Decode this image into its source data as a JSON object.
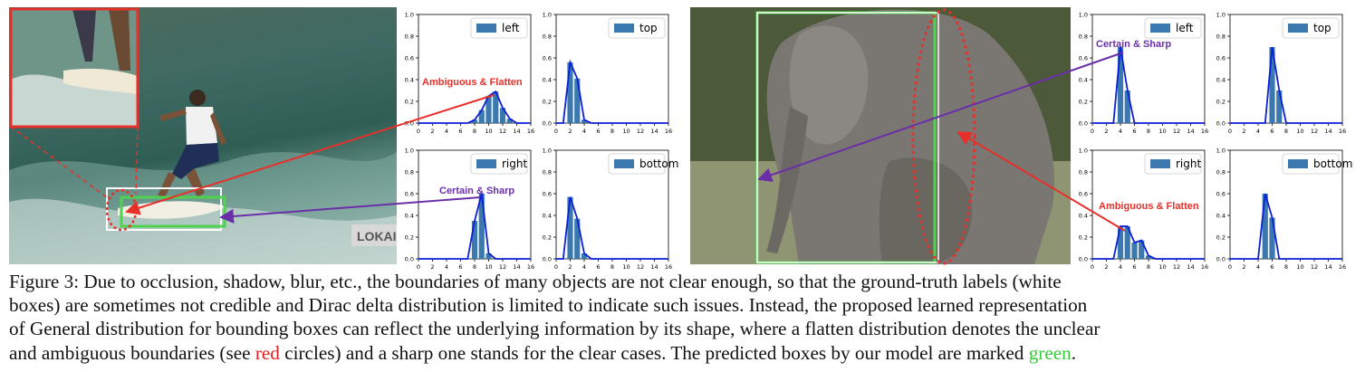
{
  "figure": {
    "left_panel": {
      "annotation_red": "Ambiguous & Flatten",
      "annotation_purple": "Certain & Sharp",
      "sign_text": "LOKAI",
      "ids": {
        "tl": "left-top-left",
        "tr": "left-top-right",
        "bl": "left-bottom-left",
        "br": "left-bottom-right"
      }
    },
    "right_panel": {
      "annotation_red": "Ambiguous & Flatten",
      "annotation_purple": "Certain & Sharp",
      "ids": {
        "tl": "right-top-left",
        "tr": "right-top-right",
        "bl": "right-bottom-left",
        "br": "right-bottom-right"
      }
    },
    "colors": {
      "bar": "#3b78b0",
      "curve": "#0a1fd6",
      "red": "#e8302a",
      "purple": "#6a2fa8",
      "green": "#4fd24f"
    }
  },
  "chart_data": [
    {
      "id": "left-top-left",
      "type": "bar",
      "legend": "left",
      "x": [
        0,
        1,
        2,
        3,
        4,
        5,
        6,
        7,
        8,
        9,
        10,
        11,
        12,
        13,
        14,
        15,
        16
      ],
      "values": [
        0,
        0,
        0,
        0,
        0,
        0,
        0,
        0,
        0.03,
        0.12,
        0.25,
        0.29,
        0.14,
        0.04,
        0,
        0,
        0
      ],
      "xlim": [
        0,
        16
      ],
      "ylim": [
        0,
        1.0
      ],
      "xticks": [
        0,
        2,
        4,
        6,
        8,
        10,
        12,
        14,
        16
      ],
      "yticks": [
        0.0,
        0.2,
        0.4,
        0.6,
        0.8,
        1.0
      ]
    },
    {
      "id": "left-top-right",
      "type": "bar",
      "legend": "top",
      "x": [
        0,
        1,
        2,
        3,
        4,
        5,
        6,
        7,
        8,
        9,
        10,
        11,
        12,
        13,
        14,
        15,
        16
      ],
      "values": [
        0,
        0,
        0.56,
        0.41,
        0.03,
        0,
        0,
        0,
        0,
        0,
        0,
        0,
        0,
        0,
        0,
        0,
        0
      ],
      "xlim": [
        0,
        16
      ],
      "ylim": [
        0,
        1.0
      ],
      "xticks": [
        0,
        2,
        4,
        6,
        8,
        10,
        12,
        14,
        16
      ],
      "yticks": [
        0.0,
        0.2,
        0.4,
        0.6,
        0.8,
        1.0
      ]
    },
    {
      "id": "left-bottom-left",
      "type": "bar",
      "legend": "right",
      "x": [
        0,
        1,
        2,
        3,
        4,
        5,
        6,
        7,
        8,
        9,
        10,
        11,
        12,
        13,
        14,
        15,
        16
      ],
      "values": [
        0,
        0,
        0,
        0,
        0,
        0,
        0,
        0,
        0.35,
        0.6,
        0.05,
        0,
        0,
        0,
        0,
        0,
        0
      ],
      "xlim": [
        0,
        16
      ],
      "ylim": [
        0,
        1.0
      ],
      "xticks": [
        0,
        2,
        4,
        6,
        8,
        10,
        12,
        14,
        16
      ],
      "yticks": [
        0.0,
        0.2,
        0.4,
        0.6,
        0.8,
        1.0
      ]
    },
    {
      "id": "left-bottom-right",
      "type": "bar",
      "legend": "bottom",
      "x": [
        0,
        1,
        2,
        3,
        4,
        5,
        6,
        7,
        8,
        9,
        10,
        11,
        12,
        13,
        14,
        15,
        16
      ],
      "values": [
        0,
        0,
        0.57,
        0.37,
        0.05,
        0,
        0,
        0,
        0,
        0,
        0,
        0,
        0,
        0,
        0,
        0,
        0
      ],
      "xlim": [
        0,
        16
      ],
      "ylim": [
        0,
        1.0
      ],
      "xticks": [
        0,
        2,
        4,
        6,
        8,
        10,
        12,
        14,
        16
      ],
      "yticks": [
        0.0,
        0.2,
        0.4,
        0.6,
        0.8,
        1.0
      ]
    },
    {
      "id": "right-top-left",
      "type": "bar",
      "legend": "left",
      "x": [
        0,
        1,
        2,
        3,
        4,
        5,
        6,
        7,
        8,
        9,
        10,
        11,
        12,
        13,
        14,
        15,
        16
      ],
      "values": [
        0,
        0,
        0,
        0,
        0.7,
        0.3,
        0,
        0,
        0,
        0,
        0,
        0,
        0,
        0,
        0,
        0,
        0
      ],
      "xlim": [
        0,
        16
      ],
      "ylim": [
        0,
        1.0
      ],
      "xticks": [
        0,
        2,
        4,
        6,
        8,
        10,
        12,
        14,
        16
      ],
      "yticks": [
        0.0,
        0.2,
        0.4,
        0.6,
        0.8,
        1.0
      ]
    },
    {
      "id": "right-top-right",
      "type": "bar",
      "legend": "top",
      "x": [
        0,
        1,
        2,
        3,
        4,
        5,
        6,
        7,
        8,
        9,
        10,
        11,
        12,
        13,
        14,
        15,
        16
      ],
      "values": [
        0,
        0,
        0,
        0,
        0,
        0,
        0.7,
        0.3,
        0,
        0,
        0,
        0,
        0,
        0,
        0,
        0,
        0
      ],
      "xlim": [
        0,
        16
      ],
      "ylim": [
        0,
        1.0
      ],
      "xticks": [
        0,
        2,
        4,
        6,
        8,
        10,
        12,
        14,
        16
      ],
      "yticks": [
        0.0,
        0.2,
        0.4,
        0.6,
        0.8,
        1.0
      ]
    },
    {
      "id": "right-bottom-left",
      "type": "bar",
      "legend": "right",
      "x": [
        0,
        1,
        2,
        3,
        4,
        5,
        6,
        7,
        8,
        9,
        10,
        11,
        12,
        13,
        14,
        15,
        16
      ],
      "values": [
        0,
        0,
        0,
        0,
        0.3,
        0.3,
        0.15,
        0.17,
        0.03,
        0,
        0,
        0,
        0,
        0,
        0,
        0,
        0
      ],
      "xlim": [
        0,
        16
      ],
      "ylim": [
        0,
        1.0
      ],
      "xticks": [
        0,
        2,
        4,
        6,
        8,
        10,
        12,
        14,
        16
      ],
      "yticks": [
        0.0,
        0.2,
        0.4,
        0.6,
        0.8,
        1.0
      ]
    },
    {
      "id": "right-bottom-right",
      "type": "bar",
      "legend": "bottom",
      "x": [
        0,
        1,
        2,
        3,
        4,
        5,
        6,
        7,
        8,
        9,
        10,
        11,
        12,
        13,
        14,
        15,
        16
      ],
      "values": [
        0,
        0,
        0,
        0,
        0,
        0.6,
        0.38,
        0,
        0,
        0,
        0,
        0,
        0,
        0,
        0,
        0,
        0
      ],
      "xlim": [
        0,
        16
      ],
      "ylim": [
        0,
        1.0
      ],
      "xticks": [
        0,
        2,
        4,
        6,
        8,
        10,
        12,
        14,
        16
      ],
      "yticks": [
        0.0,
        0.2,
        0.4,
        0.6,
        0.8,
        1.0
      ]
    }
  ],
  "caption": {
    "line1": "Figure 3:  Due to occlusion, shadow, blur, etc., the boundaries of many objects are not clear enough, so that the ground-truth labels (white",
    "line2": "boxes) are sometimes not credible and Dirac delta distribution is limited to indicate such issues. Instead, the proposed learned representation",
    "line3": "of General distribution for bounding boxes can reflect the underlying information by its shape, where a flatten distribution denotes the unclear",
    "line4a": "and ambiguous boundaries (see ",
    "red_word": "red",
    "line4b": " circles) and a sharp one stands for the clear cases. The predicted boxes by our model are marked ",
    "green_word": "green",
    "line4c": "."
  }
}
